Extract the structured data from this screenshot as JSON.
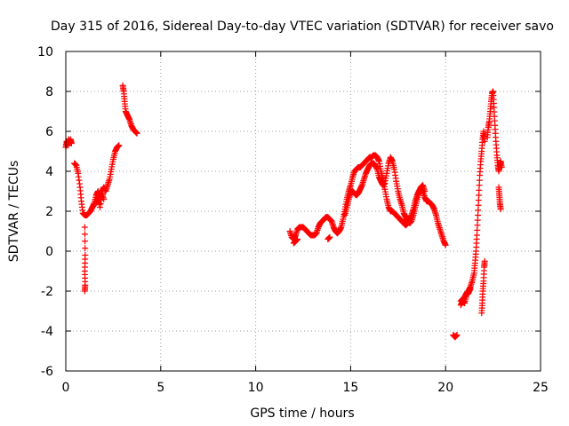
{
  "chart_data": {
    "type": "scatter",
    "title": "Day 315 of 2016, Sidereal Day-to-day VTEC variation (SDTVAR) for receiver savo",
    "xlabel": "GPS time / hours",
    "ylabel": "SDTVAR / TECUs",
    "xlim": [
      0,
      25
    ],
    "ylim": [
      -6,
      10
    ],
    "grid": true,
    "marker": "+",
    "marker_color": "#ff0000",
    "x_ticks": [
      0,
      5,
      10,
      15,
      20,
      25
    ],
    "x_tick_labels": [
      "0",
      "5",
      "10",
      "15",
      "20",
      "25"
    ],
    "y_ticks": [
      -6,
      -4,
      -2,
      0,
      2,
      4,
      6,
      8,
      10
    ],
    "y_tick_labels": [
      "-6",
      "-4",
      "-2",
      "0",
      "2",
      "4",
      "6",
      "8",
      "10"
    ],
    "series": [
      {
        "name": "SDTVAR",
        "segments": [
          [
            [
              0.0,
              5.2
            ],
            [
              0.05,
              5.5
            ],
            [
              0.1,
              5.3
            ],
            [
              0.15,
              5.6
            ],
            [
              0.2,
              5.4
            ],
            [
              0.25,
              5.6
            ],
            [
              0.3,
              5.4
            ]
          ],
          [
            [
              0.45,
              4.4
            ],
            [
              0.55,
              4.3
            ],
            [
              0.65,
              3.9
            ],
            [
              0.75,
              3.2
            ],
            [
              0.82,
              2.5
            ],
            [
              0.9,
              1.9
            ],
            [
              1.0,
              1.8
            ],
            [
              1.1,
              1.8
            ],
            [
              1.2,
              1.9
            ],
            [
              1.3,
              2.0
            ],
            [
              1.4,
              2.2
            ],
            [
              1.5,
              2.4
            ],
            [
              1.6,
              2.8
            ],
            [
              1.7,
              3.0
            ],
            [
              1.8,
              2.6
            ],
            [
              1.9,
              3.0
            ],
            [
              2.0,
              3.2
            ],
            [
              2.1,
              3.0
            ],
            [
              2.2,
              3.3
            ],
            [
              2.3,
              3.6
            ],
            [
              2.4,
              4.1
            ],
            [
              2.5,
              4.6
            ],
            [
              2.6,
              5.0
            ],
            [
              2.7,
              5.2
            ],
            [
              2.8,
              5.3
            ]
          ],
          [
            [
              1.6,
              2.4
            ],
            [
              1.7,
              2.7
            ],
            [
              1.8,
              2.2
            ],
            [
              1.9,
              2.9
            ],
            [
              2.0,
              2.6
            ]
          ],
          [
            [
              1.0,
              1.2
            ],
            [
              1.02,
              -0.2
            ],
            [
              1.0,
              -1.0
            ],
            [
              1.02,
              -1.7
            ],
            [
              1.0,
              -2.0
            ]
          ],
          [
            [
              3.0,
              8.3
            ],
            [
              3.05,
              8.0
            ],
            [
              3.1,
              7.5
            ],
            [
              3.15,
              7.0
            ],
            [
              3.25,
              6.8
            ],
            [
              3.35,
              6.6
            ],
            [
              3.45,
              6.3
            ],
            [
              3.55,
              6.1
            ],
            [
              3.65,
              6.0
            ],
            [
              3.75,
              5.9
            ]
          ],
          [
            [
              11.8,
              1.0
            ],
            [
              11.9,
              0.7
            ],
            [
              12.0,
              0.6
            ],
            [
              12.1,
              0.8
            ],
            [
              12.2,
              1.1
            ],
            [
              12.3,
              1.2
            ],
            [
              12.4,
              1.2
            ],
            [
              12.5,
              1.2
            ],
            [
              12.6,
              1.1
            ],
            [
              12.7,
              1.0
            ],
            [
              12.8,
              0.9
            ],
            [
              12.9,
              0.8
            ],
            [
              13.0,
              0.8
            ],
            [
              13.1,
              0.8
            ],
            [
              13.2,
              0.9
            ],
            [
              13.3,
              1.2
            ],
            [
              13.4,
              1.4
            ],
            [
              13.5,
              1.5
            ],
            [
              13.6,
              1.6
            ],
            [
              13.7,
              1.7
            ],
            [
              13.8,
              1.7
            ],
            [
              13.9,
              1.6
            ],
            [
              14.0,
              1.5
            ],
            [
              14.1,
              1.2
            ],
            [
              14.2,
              1.0
            ],
            [
              14.3,
              0.9
            ],
            [
              14.4,
              1.0
            ],
            [
              14.5,
              1.2
            ],
            [
              14.6,
              1.6
            ],
            [
              14.7,
              2.1
            ],
            [
              14.8,
              2.6
            ],
            [
              14.9,
              3.0
            ],
            [
              15.0,
              3.3
            ],
            [
              15.1,
              3.7
            ],
            [
              15.2,
              4.0
            ],
            [
              15.3,
              4.1
            ],
            [
              15.4,
              4.2
            ],
            [
              15.5,
              4.2
            ],
            [
              15.6,
              4.3
            ],
            [
              15.7,
              4.4
            ],
            [
              15.8,
              4.5
            ],
            [
              15.9,
              4.6
            ],
            [
              16.0,
              4.7
            ],
            [
              16.1,
              4.7
            ],
            [
              16.2,
              4.8
            ],
            [
              16.3,
              4.8
            ],
            [
              16.4,
              4.7
            ],
            [
              16.5,
              4.5
            ],
            [
              16.6,
              4.0
            ],
            [
              16.7,
              3.6
            ],
            [
              16.8,
              3.1
            ],
            [
              16.9,
              2.6
            ],
            [
              17.0,
              2.2
            ],
            [
              17.1,
              2.0
            ],
            [
              17.2,
              2.0
            ],
            [
              17.3,
              1.9
            ],
            [
              17.4,
              1.8
            ],
            [
              17.5,
              1.7
            ],
            [
              17.6,
              1.6
            ],
            [
              17.7,
              1.5
            ],
            [
              17.8,
              1.4
            ],
            [
              17.9,
              1.3
            ],
            [
              18.0,
              1.4
            ],
            [
              18.1,
              1.6
            ],
            [
              18.2,
              1.8
            ],
            [
              18.3,
              2.1
            ],
            [
              18.4,
              2.5
            ],
            [
              18.5,
              2.8
            ],
            [
              18.6,
              3.0
            ],
            [
              18.7,
              3.1
            ],
            [
              18.8,
              3.0
            ],
            [
              18.9,
              2.7
            ],
            [
              19.0,
              2.5
            ],
            [
              19.1,
              2.5
            ],
            [
              19.2,
              2.4
            ],
            [
              19.3,
              2.3
            ],
            [
              19.4,
              2.1
            ],
            [
              19.5,
              1.8
            ],
            [
              19.6,
              1.4
            ],
            [
              19.7,
              1.1
            ],
            [
              19.8,
              0.8
            ],
            [
              19.9,
              0.5
            ],
            [
              20.0,
              0.3
            ]
          ],
          [
            [
              12.0,
              0.4
            ],
            [
              12.1,
              0.5
            ],
            [
              12.2,
              0.6
            ]
          ],
          [
            [
              13.8,
              0.6
            ],
            [
              13.9,
              0.7
            ]
          ],
          [
            [
              14.7,
              1.8
            ],
            [
              14.8,
              2.2
            ],
            [
              14.9,
              2.6
            ],
            [
              15.0,
              2.9
            ],
            [
              15.1,
              3.0
            ],
            [
              15.2,
              2.9
            ],
            [
              15.3,
              2.8
            ],
            [
              15.4,
              2.9
            ],
            [
              15.5,
              3.1
            ],
            [
              15.6,
              3.3
            ],
            [
              15.7,
              3.6
            ],
            [
              15.8,
              3.9
            ],
            [
              15.9,
              4.1
            ],
            [
              16.0,
              4.3
            ],
            [
              16.1,
              4.4
            ],
            [
              16.2,
              4.4
            ],
            [
              16.3,
              4.3
            ],
            [
              16.4,
              4.1
            ],
            [
              16.5,
              3.7
            ],
            [
              16.6,
              3.5
            ],
            [
              16.7,
              3.3
            ],
            [
              16.8,
              3.4
            ],
            [
              16.9,
              3.9
            ],
            [
              17.0,
              4.4
            ],
            [
              17.1,
              4.7
            ],
            [
              17.2,
              4.5
            ],
            [
              17.3,
              4.1
            ],
            [
              17.4,
              3.5
            ],
            [
              17.5,
              3.0
            ],
            [
              17.6,
              2.6
            ],
            [
              17.7,
              2.3
            ],
            [
              17.8,
              1.9
            ],
            [
              17.9,
              1.7
            ],
            [
              18.0,
              1.5
            ],
            [
              18.1,
              1.4
            ],
            [
              18.2,
              1.5
            ],
            [
              18.3,
              1.8
            ],
            [
              18.4,
              2.2
            ],
            [
              18.5,
              2.6
            ],
            [
              18.6,
              3.0
            ],
            [
              18.7,
              3.2
            ],
            [
              18.8,
              3.3
            ],
            [
              18.9,
              3.0
            ]
          ],
          [
            [
              20.4,
              -4.2
            ],
            [
              20.5,
              -4.3
            ],
            [
              20.6,
              -4.2
            ]
          ],
          [
            [
              20.8,
              -2.5
            ],
            [
              20.9,
              -2.4
            ],
            [
              21.0,
              -2.3
            ],
            [
              21.1,
              -2.1
            ],
            [
              21.2,
              -2.0
            ],
            [
              21.3,
              -1.8
            ],
            [
              21.4,
              -1.5
            ],
            [
              21.5,
              -1.1
            ],
            [
              21.55,
              -0.6
            ],
            [
              21.6,
              0.0
            ],
            [
              21.65,
              0.8
            ],
            [
              21.7,
              1.8
            ],
            [
              21.75,
              2.8
            ],
            [
              21.8,
              3.8
            ],
            [
              21.85,
              4.5
            ],
            [
              21.9,
              5.0
            ],
            [
              21.95,
              5.6
            ],
            [
              22.0,
              6.0
            ],
            [
              22.05,
              5.5
            ]
          ],
          [
            [
              20.8,
              -2.7
            ],
            [
              20.9,
              -2.5
            ],
            [
              21.0,
              -2.6
            ],
            [
              21.1,
              -2.2
            ],
            [
              21.2,
              -2.1
            ],
            [
              21.3,
              -1.9
            ]
          ],
          [
            [
              21.9,
              -3.1
            ],
            [
              21.93,
              -2.6
            ],
            [
              21.96,
              -2.0
            ],
            [
              22.0,
              -1.5
            ],
            [
              22.03,
              -0.8
            ],
            [
              22.06,
              -0.5
            ]
          ],
          [
            [
              22.2,
              5.7
            ],
            [
              22.25,
              6.2
            ],
            [
              22.3,
              6.5
            ],
            [
              22.35,
              7.0
            ],
            [
              22.4,
              7.5
            ],
            [
              22.45,
              7.9
            ],
            [
              22.5,
              8.0
            ],
            [
              22.55,
              7.2
            ],
            [
              22.6,
              6.3
            ],
            [
              22.65,
              5.5
            ],
            [
              22.7,
              4.8
            ],
            [
              22.75,
              4.3
            ],
            [
              22.8,
              4.0
            ],
            [
              22.85,
              4.3
            ],
            [
              22.9,
              4.5
            ],
            [
              22.95,
              4.2
            ]
          ],
          [
            [
              22.8,
              3.2
            ],
            [
              22.83,
              2.8
            ],
            [
              22.86,
              2.4
            ],
            [
              22.9,
              2.1
            ]
          ]
        ]
      }
    ]
  }
}
